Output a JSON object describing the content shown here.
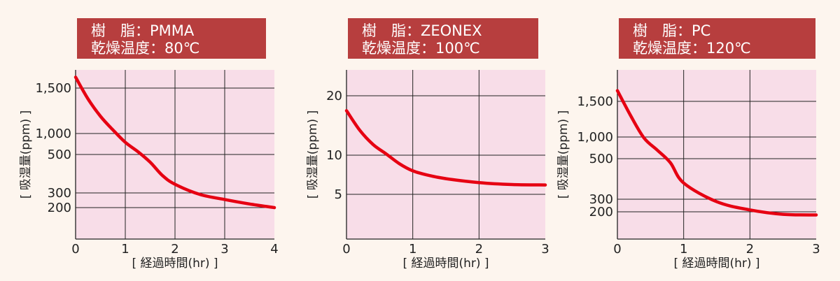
{
  "colors": {
    "background": "#fdf5ee",
    "plot_bg": "#f8dde8",
    "title_bg": "#b73e3e",
    "title_text": "#ffffff",
    "curve": "#e60012",
    "grid": "#222222"
  },
  "chart_data": [
    {
      "type": "line",
      "title_line1": "樹　脂：PMMA",
      "title_line2": "乾燥温度：80℃",
      "xlabel": "[ 経過時間(hr) ]",
      "ylabel": "[ 吸湿量(ppm) ]",
      "xlim": [
        0,
        4
      ],
      "x_ticks": [
        {
          "value": 0,
          "label": "0"
        },
        {
          "value": 1,
          "label": "1"
        },
        {
          "value": 2,
          "label": "2"
        },
        {
          "value": 3,
          "label": "3"
        },
        {
          "value": 4,
          "label": "4"
        }
      ],
      "y_scale": "nonuniform",
      "y_ticks": [
        {
          "value": 1500,
          "label": "1,500"
        },
        {
          "value": 1000,
          "label": "1,000"
        },
        {
          "value": 500,
          "label": "500"
        },
        {
          "value": 300,
          "label": "300"
        },
        {
          "value": 200,
          "label": "200"
        }
      ],
      "series": [
        {
          "x": [
            0,
            0.25,
            0.5,
            0.75,
            1,
            1.25,
            1.5,
            1.75,
            2,
            2.5,
            3,
            3.5,
            4
          ],
          "y": [
            1620,
            1380,
            1190,
            1040,
            790,
            570,
            460,
            390,
            345,
            290,
            255,
            225,
            200
          ]
        }
      ]
    },
    {
      "type": "line",
      "title_line1": "樹　脂：ZEONEX",
      "title_line2": "乾燥温度：100℃",
      "xlabel": "[ 経過時間(hr) ]",
      "ylabel": "[ 吸湿量(ppm) ]",
      "xlim": [
        0,
        3
      ],
      "x_ticks": [
        {
          "value": 0,
          "label": "0"
        },
        {
          "value": 1,
          "label": "1"
        },
        {
          "value": 2,
          "label": "2"
        },
        {
          "value": 3,
          "label": "3"
        }
      ],
      "y_scale": "nonuniform",
      "y_ticks": [
        {
          "value": 20,
          "label": "20"
        },
        {
          "value": 10,
          "label": "10"
        },
        {
          "value": 5,
          "label": "5"
        }
      ],
      "series": [
        {
          "x": [
            0,
            0.2,
            0.4,
            0.6,
            0.8,
            1,
            1.25,
            1.5,
            2,
            2.5,
            3
          ],
          "y": [
            17.5,
            14.2,
            11.8,
            10.2,
            8.9,
            8.0,
            7.4,
            7.0,
            6.5,
            6.25,
            6.2
          ]
        }
      ]
    },
    {
      "type": "line",
      "title_line1": "樹　脂：PC",
      "title_line2": "乾燥温度：120℃",
      "xlabel": "[ 経過時間(hr) ]",
      "ylabel": "[ 吸湿量(ppm) ]",
      "xlim": [
        0,
        3
      ],
      "x_ticks": [
        {
          "value": 0,
          "label": "0"
        },
        {
          "value": 1,
          "label": "1"
        },
        {
          "value": 2,
          "label": "2"
        },
        {
          "value": 3,
          "label": "3"
        }
      ],
      "y_scale": "nonuniform",
      "y_ticks": [
        {
          "value": 1500,
          "label": "1,500"
        },
        {
          "value": 1000,
          "label": "1,000"
        },
        {
          "value": 500,
          "label": "500"
        },
        {
          "value": 300,
          "label": "300"
        },
        {
          "value": 200,
          "label": "200"
        }
      ],
      "series": [
        {
          "x": [
            0,
            0.2,
            0.4,
            0.6,
            0.8,
            1,
            1.5,
            2,
            2.5,
            3
          ],
          "y": [
            1650,
            1300,
            980,
            700,
            480,
            380,
            280,
            215,
            180,
            175
          ]
        }
      ]
    }
  ]
}
